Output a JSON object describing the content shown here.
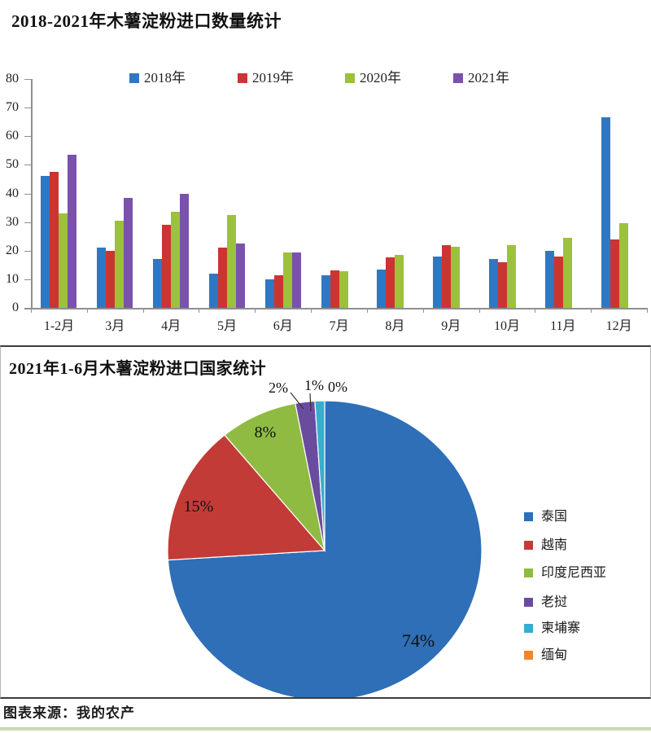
{
  "source": {
    "text": "图表来源：我的农产"
  },
  "chart_data": [
    {
      "type": "bar",
      "title": "2018-2021年木薯淀粉进口数量统计",
      "categories": [
        "1-2月",
        "3月",
        "4月",
        "5月",
        "6月",
        "7月",
        "8月",
        "9月",
        "10月",
        "11月",
        "12月"
      ],
      "series": [
        {
          "name": "2018年",
          "color": "#2E78C3",
          "values": [
            46,
            21,
            17,
            12,
            10,
            11.5,
            13.5,
            18,
            17,
            20,
            66.5
          ]
        },
        {
          "name": "2019年",
          "color": "#CC3433",
          "values": [
            47.5,
            20,
            29,
            21,
            11.5,
            13,
            17.7,
            22,
            16,
            18,
            24
          ]
        },
        {
          "name": "2020年",
          "color": "#9CC13C",
          "values": [
            33,
            30.5,
            33.5,
            32.5,
            19.5,
            12.7,
            18.5,
            21.3,
            22,
            24.5,
            29.5
          ]
        },
        {
          "name": "2021年",
          "color": "#7A52AC",
          "values": [
            53.5,
            38.5,
            40,
            22.5,
            19.3,
            null,
            null,
            null,
            null,
            null,
            null
          ]
        }
      ],
      "ylim": [
        0,
        80
      ],
      "ytick_step": 10,
      "grid": false,
      "legend_position": "top"
    },
    {
      "type": "pie",
      "title": "2021年1-6月木薯淀粉进口国家统计",
      "slices": [
        {
          "label": "泰国",
          "pct": 74,
          "pct_label": "74%",
          "color": "#2E6FB7"
        },
        {
          "label": "越南",
          "pct": 15,
          "pct_label": "15%",
          "color": "#C23B36"
        },
        {
          "label": "印度尼西亚",
          "pct": 8,
          "pct_label": "8%",
          "color": "#8FBB43"
        },
        {
          "label": "老挝",
          "pct": 2,
          "pct_label": "2%",
          "color": "#6A4C9F"
        },
        {
          "label": "柬埔寨",
          "pct": 1,
          "pct_label": "1%",
          "color": "#38AECD"
        },
        {
          "label": "缅甸",
          "pct": 0,
          "pct_label": "0%",
          "color": "#F0862B"
        }
      ],
      "legend_position": "right"
    }
  ]
}
